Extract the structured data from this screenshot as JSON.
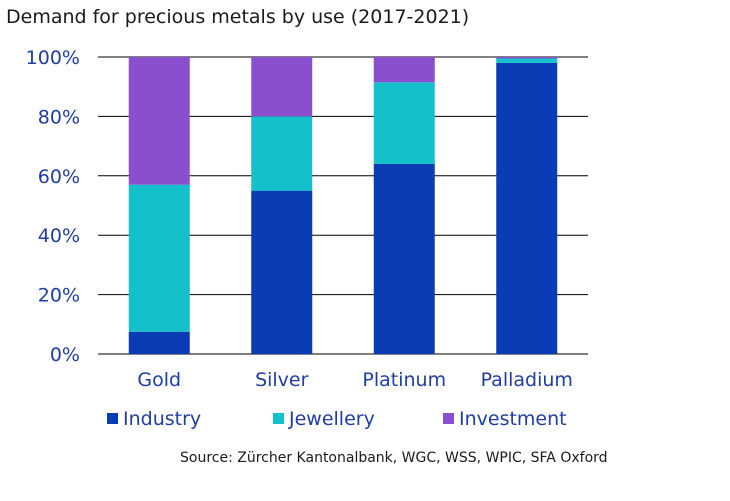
{
  "title": "Demand for precious metals by use (2017-2021)",
  "source": "Source: Zürcher Kantonalbank, WGC, WSS, WPIC, SFA Oxford",
  "chart_data": {
    "type": "bar",
    "stacked": true,
    "categories": [
      "Gold",
      "Silver",
      "Platinum",
      "Palladium"
    ],
    "ylim": [
      0,
      100
    ],
    "yticks": [
      "0%",
      "20%",
      "40%",
      "60%",
      "80%",
      "100%"
    ],
    "grid": true,
    "legend_position": "bottom",
    "series": [
      {
        "name": "Industry",
        "color": "#0a3db5",
        "values": [
          7.5,
          55,
          64,
          98
        ]
      },
      {
        "name": "Jewellery",
        "color": "#14c0c9",
        "values": [
          49.5,
          25,
          27.5,
          1.5
        ]
      },
      {
        "name": "Investment",
        "color": "#8a4fcf",
        "values": [
          43,
          20,
          8.5,
          0.5
        ]
      }
    ]
  }
}
